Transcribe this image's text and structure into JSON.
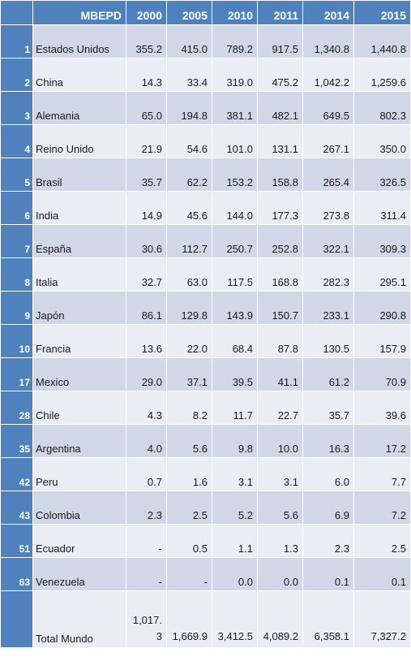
{
  "chart_data": {
    "type": "table",
    "title": "",
    "columns": [
      "MBEPD",
      "2000",
      "2005",
      "2010",
      "2011",
      "2014",
      "2015"
    ],
    "rows": [
      {
        "rank": "1",
        "country": "Estados Unidos",
        "values": [
          "355.2",
          "415.0",
          "789.2",
          "917.5",
          "1,340.8",
          "1,440.8"
        ]
      },
      {
        "rank": "2",
        "country": "China",
        "values": [
          "14.3",
          "33.4",
          "319.0",
          "475.2",
          "1,042.2",
          "1,259.6"
        ]
      },
      {
        "rank": "3",
        "country": "Alemania",
        "values": [
          "65.0",
          "194.8",
          "381.1",
          "482.1",
          "649.5",
          "802.3"
        ]
      },
      {
        "rank": "4",
        "country": "Reino Unido",
        "values": [
          "21.9",
          "54.6",
          "101.0",
          "131.1",
          "267.1",
          "350.0"
        ]
      },
      {
        "rank": "5",
        "country": "Brasil",
        "values": [
          "35.7",
          "62.2",
          "153.2",
          "158.8",
          "265.4",
          "326.5"
        ]
      },
      {
        "rank": "6",
        "country": "India",
        "values": [
          "14.9",
          "45.6",
          "144.0",
          "177.3",
          "273.8",
          "311.4"
        ]
      },
      {
        "rank": "7",
        "country": "España",
        "values": [
          "30.6",
          "112.7",
          "250.7",
          "252.8",
          "322.1",
          "309.3"
        ]
      },
      {
        "rank": "8",
        "country": "Italia",
        "values": [
          "32.7",
          "63.0",
          "117.5",
          "168.8",
          "282.3",
          "295.1"
        ]
      },
      {
        "rank": "9",
        "country": "Japón",
        "values": [
          "86.1",
          "129.8",
          "143.9",
          "150.7",
          "233.1",
          "290.8"
        ]
      },
      {
        "rank": "10",
        "country": "Francia",
        "values": [
          "13.6",
          "22.0",
          "68.4",
          "87.8",
          "130.5",
          "157.9"
        ]
      },
      {
        "rank": "17",
        "country": "Mexico",
        "values": [
          "29.0",
          "37.1",
          "39.5",
          "41.1",
          "61.2",
          "70.9"
        ]
      },
      {
        "rank": "28",
        "country": "Chile",
        "values": [
          "4.3",
          "8.2",
          "11.7",
          "22.7",
          "35.7",
          "39.6"
        ]
      },
      {
        "rank": "35",
        "country": "Argentina",
        "values": [
          "4.0",
          "5.6",
          "9.8",
          "10.0",
          "16.3",
          "17.2"
        ]
      },
      {
        "rank": "42",
        "country": "Peru",
        "values": [
          "0.7",
          "1.6",
          "3.1",
          "3.1",
          "6.0",
          "7.7"
        ]
      },
      {
        "rank": "43",
        "country": "Colombia",
        "values": [
          "2.3",
          "2.5",
          "5.2",
          "5.6",
          "6.9",
          "7.2"
        ]
      },
      {
        "rank": "51",
        "country": "Ecuador",
        "values": [
          "-",
          "0.5",
          "1.1",
          "1.3",
          "2.3",
          "2.5"
        ]
      },
      {
        "rank": "63",
        "country": "Venezuela",
        "values": [
          "-",
          "-",
          "0.0",
          "0.0",
          "0.1",
          "0.1"
        ]
      }
    ],
    "total": {
      "rank": "",
      "country": "Total Mundo",
      "values": [
        "1,017.3",
        "1,669.9",
        "3,412.5",
        "4,089.2",
        "6,358.1",
        "7,327.2"
      ]
    },
    "colors": {
      "header": "#4f81bd",
      "band_dark": "#d0d8e8",
      "band_light": "#e9edf4"
    }
  }
}
